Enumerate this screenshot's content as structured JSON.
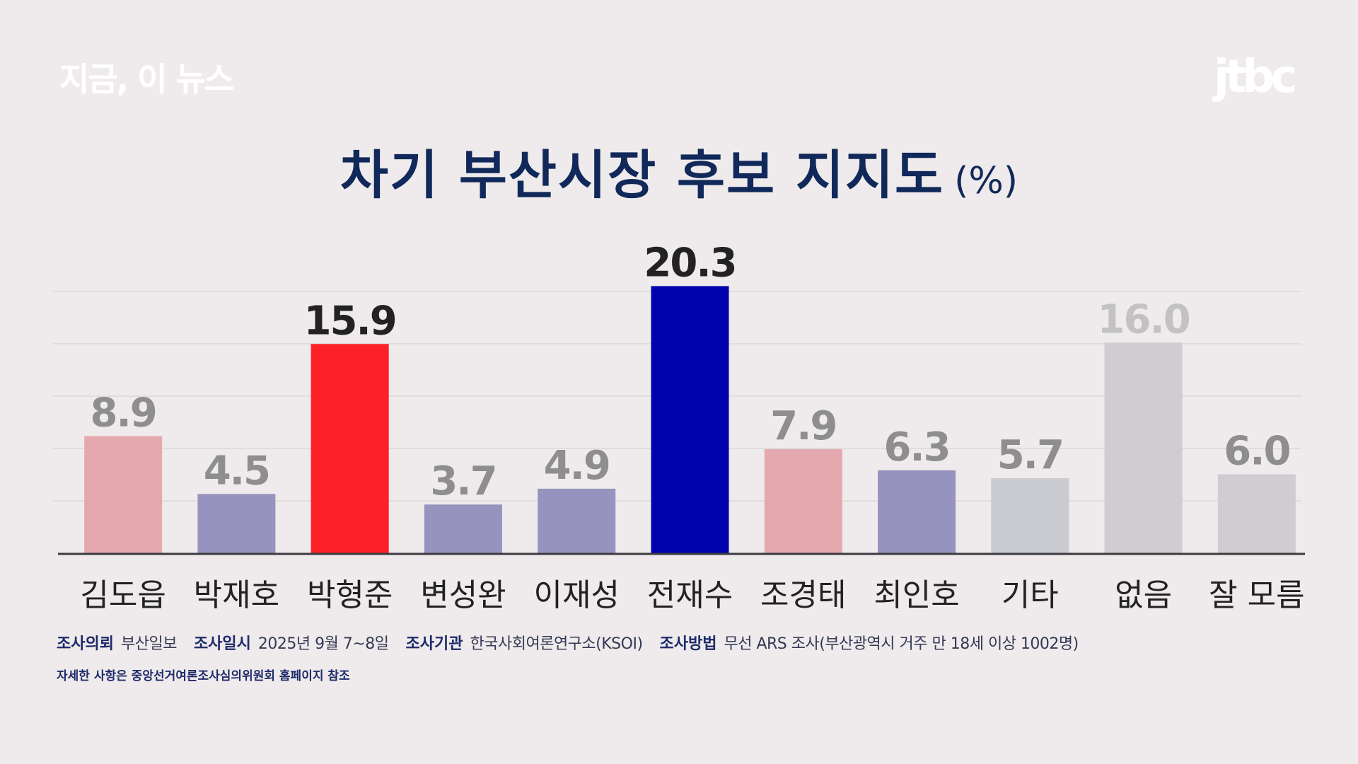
{
  "header": {
    "brand": "지금, 이 뉴스",
    "logo": "jtbc"
  },
  "chart_data": {
    "type": "bar",
    "title": "차기 부산시장 후보 지지도",
    "unit": "(%)",
    "categories": [
      "김도읍",
      "박재호",
      "박형준",
      "변성완",
      "이재성",
      "전재수",
      "조경태",
      "최인호",
      "기타",
      "없음",
      "잘 모름"
    ],
    "values": [
      8.9,
      4.5,
      15.9,
      3.7,
      4.9,
      20.3,
      7.9,
      6.3,
      5.7,
      16.0,
      6.0
    ],
    "value_labels": [
      "8.9",
      "4.5",
      "15.9",
      "3.7",
      "4.9",
      "20.3",
      "7.9",
      "6.3",
      "5.7",
      "16.0",
      "6.0"
    ],
    "colors": [
      "#e4a9ae",
      "#9694be",
      "#fe2029",
      "#9694be",
      "#9694be",
      "#0003ad",
      "#e4a9ae",
      "#9694be",
      "#c9cbd0",
      "#cfcdd2",
      "#cfcdd2"
    ],
    "label_colors": [
      "#8e8e8e",
      "#8e8e8e",
      "#222222",
      "#8e8e8e",
      "#8e8e8e",
      "#222222",
      "#8e8e8e",
      "#8e8e8e",
      "#8e8e8e",
      "#c2c2c2",
      "#8e8e8e"
    ],
    "ylim": [
      0,
      21
    ],
    "grid": true
  },
  "footer": {
    "items": [
      {
        "key": "조사의뢰",
        "value": "부산일보"
      },
      {
        "key": "조사일시",
        "value": "2025년 9월 7~8일"
      },
      {
        "key": "조사기관",
        "value": "한국사회여론연구소(KSOI)"
      },
      {
        "key": "조사방법",
        "value": "무선 ARS 조사(부산광역시 거주 만 18세 이상 1002명)"
      }
    ],
    "note": "자세한 사항은 중앙선거여론조사심의위원회 홈페이지 참조"
  }
}
